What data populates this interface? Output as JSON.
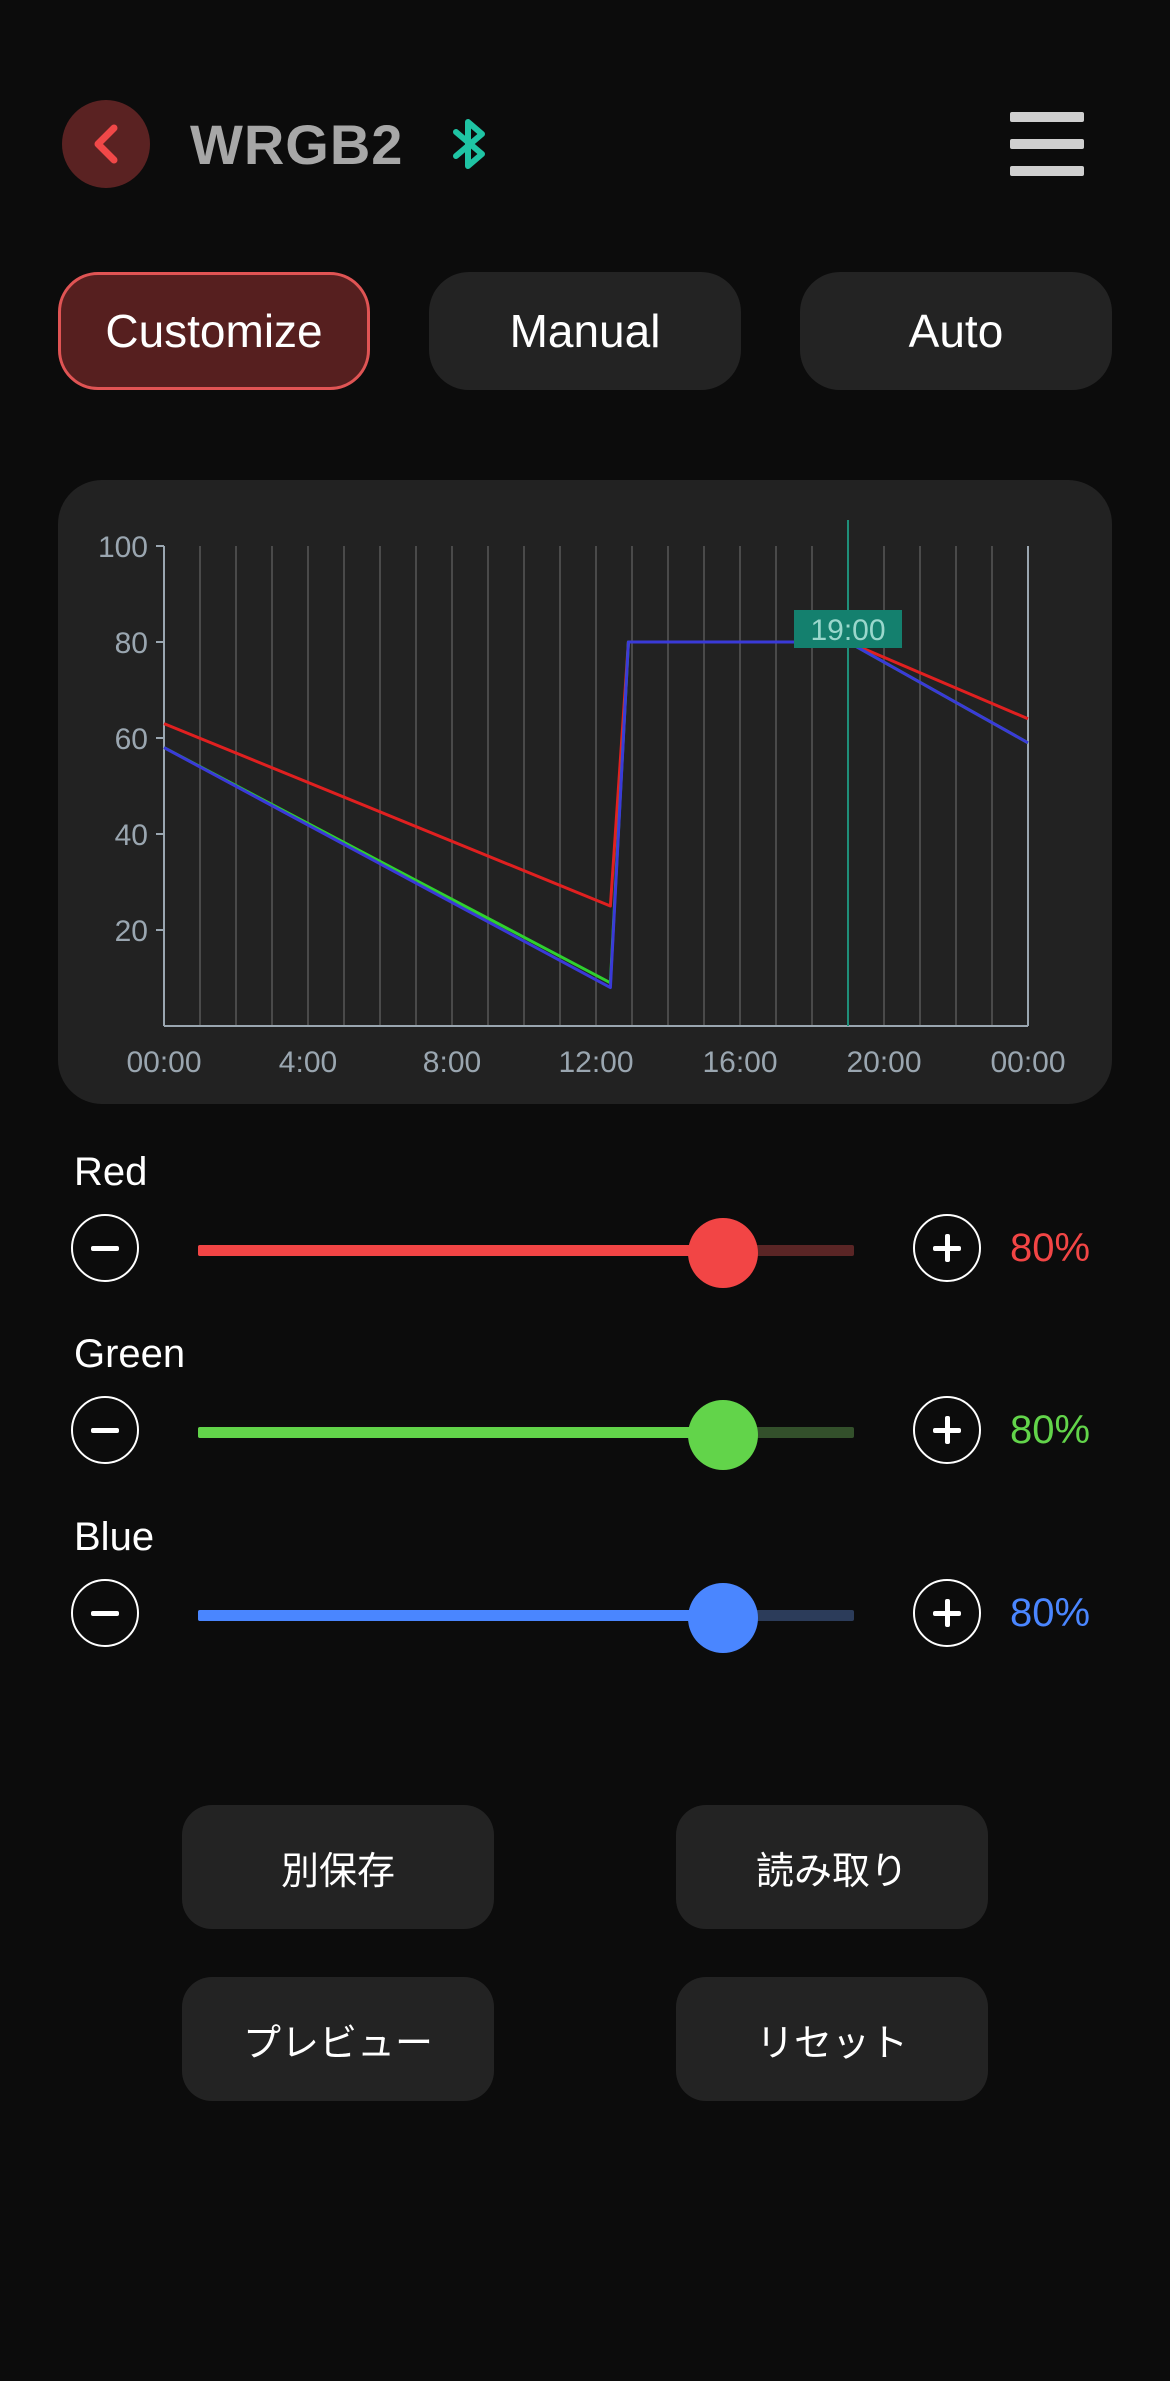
{
  "header": {
    "title": "WRGB2",
    "back_icon": "chevron-left-icon",
    "bluetooth_icon": "bluetooth-icon",
    "menu_icon": "hamburger-menu-icon"
  },
  "modes": [
    {
      "label": "Customize",
      "active": true
    },
    {
      "label": "Manual",
      "active": false
    },
    {
      "label": "Auto",
      "active": false
    }
  ],
  "chart_data": {
    "type": "line",
    "title": "",
    "xlabel": "",
    "ylabel": "",
    "x_tick_labels": [
      "00:00",
      "4:00",
      "8:00",
      "12:00",
      "16:00",
      "20:00",
      "00:00"
    ],
    "y_tick_labels": [
      "20",
      "40",
      "60",
      "80",
      "100"
    ],
    "xlim": [
      0,
      24
    ],
    "ylim": [
      0,
      100
    ],
    "grid": "vertical",
    "cursor": {
      "x": 19,
      "label": "19:00"
    },
    "series": [
      {
        "color": "#e02020",
        "x": [
          0,
          12.4,
          12.9,
          19,
          24
        ],
        "y": [
          63,
          25,
          80,
          80,
          64
        ]
      },
      {
        "color": "#2fd02f",
        "x": [
          0,
          12.4,
          12.9,
          19,
          24
        ],
        "y": [
          58,
          9,
          80,
          80,
          59
        ]
      },
      {
        "color": "#3a3ad8",
        "x": [
          0,
          12.4,
          12.9,
          19,
          24
        ],
        "y": [
          58,
          8,
          80,
          80,
          59
        ]
      }
    ]
  },
  "channels": [
    {
      "name": "Red",
      "value": 80,
      "value_text": "80%",
      "color": "#f24545",
      "track_color": "#5a2525"
    },
    {
      "name": "Green",
      "value": 80,
      "value_text": "80%",
      "color": "#62d44a",
      "track_color": "#33502b"
    },
    {
      "name": "Blue",
      "value": 80,
      "value_text": "80%",
      "color": "#4a86ff",
      "track_color": "#2c3c5a"
    }
  ],
  "actions": {
    "save_as": "別保存",
    "read": "読み取り",
    "preview": "プレビュー",
    "reset": "リセット"
  }
}
